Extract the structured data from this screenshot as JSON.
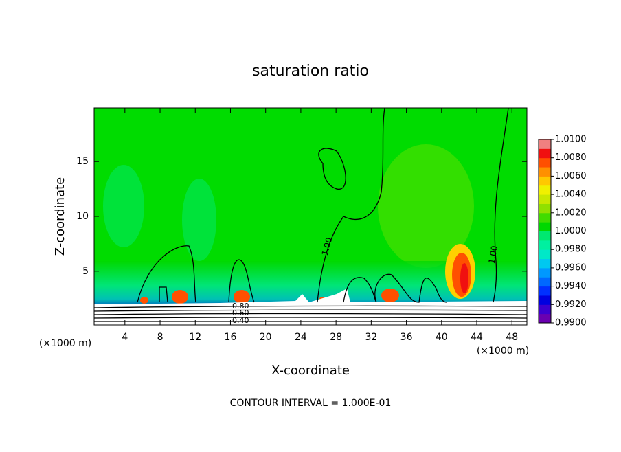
{
  "chart_data": {
    "type": "contour",
    "title": "saturation ratio",
    "x_label": "X-coordinate",
    "y_label": "Z-coordinate",
    "x_unit_labels": [
      "(×1000 m)",
      "(×1000 m)"
    ],
    "xlim": [
      0.5,
      49.7
    ],
    "ylim": [
      0.1,
      19.9
    ],
    "xticks": [
      4,
      8,
      12,
      16,
      20,
      24,
      28,
      32,
      36,
      40,
      44,
      48
    ],
    "yticks": [
      5,
      10,
      15
    ],
    "colorbar": {
      "lim": [
        0.99,
        1.01
      ],
      "ticks": [
        {
          "value": 0.99,
          "label": "0.9900"
        },
        {
          "value": 0.992,
          "label": "0.9920"
        },
        {
          "value": 0.994,
          "label": "0.9940"
        },
        {
          "value": 0.996,
          "label": "0.9960"
        },
        {
          "value": 0.998,
          "label": "0.9980"
        },
        {
          "value": 1.0,
          "label": "1.0000"
        },
        {
          "value": 1.002,
          "label": "1.0020"
        },
        {
          "value": 1.004,
          "label": "1.0040"
        },
        {
          "value": 1.006,
          "label": "1.0060"
        },
        {
          "value": 1.008,
          "label": "1.0080"
        },
        {
          "value": 1.01,
          "label": "1.0100"
        }
      ],
      "colors": [
        "#6a00b0",
        "#3c00d0",
        "#0000e0",
        "#0030ff",
        "#0068ff",
        "#0098ff",
        "#00c8f0",
        "#00e8c8",
        "#00f0a0",
        "#00e870",
        "#00d800",
        "#40dc00",
        "#90e000",
        "#c8e800",
        "#f0f000",
        "#ffc800",
        "#ff9000",
        "#ff5000",
        "#f01010",
        "#f08080"
      ]
    },
    "contour_labels": [
      "1.00",
      "1.00",
      "0.80",
      "0.60",
      "0.40"
    ],
    "footnote": "CONTOUR INTERVAL = 1.000E-01"
  }
}
